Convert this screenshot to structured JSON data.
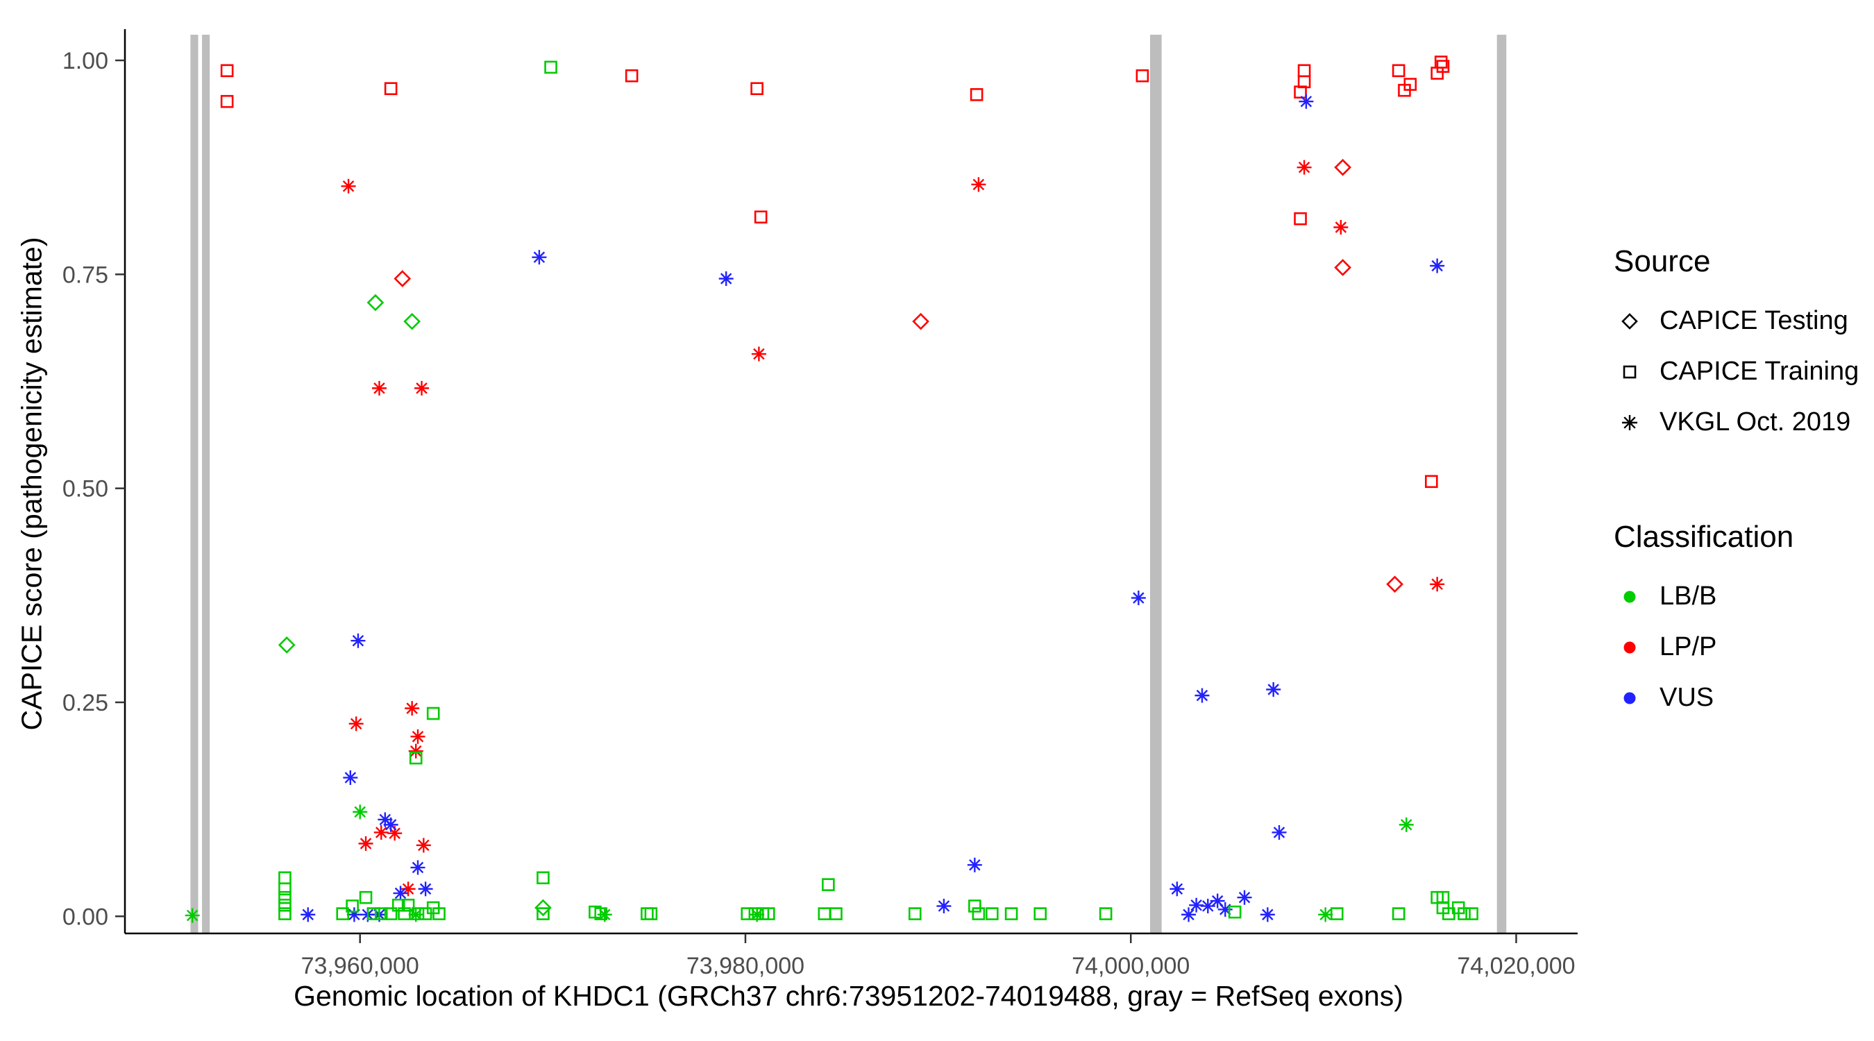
{
  "chart_data": {
    "type": "scatter",
    "title": "",
    "xlabel": "Genomic location of KHDC1 (GRCh37 chr6:73951202-74019488, gray = RefSeq exons)",
    "ylabel": "CAPICE score (pathogenicity estimate)",
    "x_range": [
      73947800,
      74022900
    ],
    "y_range": [
      -0.02,
      1.03
    ],
    "grid": false,
    "x_ticks": [
      {
        "value": 73960000,
        "label": "73,960,000"
      },
      {
        "value": 73980000,
        "label": "73,980,000"
      },
      {
        "value": 74000000,
        "label": "74,000,000"
      },
      {
        "value": 74020000,
        "label": "74,020,000"
      }
    ],
    "y_ticks": [
      {
        "value": 0.0,
        "label": "0.00"
      },
      {
        "value": 0.25,
        "label": "0.25"
      },
      {
        "value": 0.5,
        "label": "0.50"
      },
      {
        "value": 0.75,
        "label": "0.75"
      },
      {
        "value": 1.0,
        "label": "1.00"
      }
    ],
    "exon_color": "#BDBDBD",
    "exons": [
      [
        73951200,
        73951600
      ],
      [
        73951800,
        73952200
      ],
      [
        74001000,
        74001600
      ],
      [
        74019000,
        74019488
      ]
    ],
    "marker_source_map": {
      "d": "CAPICE Testing",
      "s": "CAPICE Training",
      "a": "VKGL Oct. 2019"
    },
    "classification_colors": {
      "LB/B": "#00CC00",
      "LP/P": "#FF0000",
      "VUS": "#2222FF"
    },
    "legend": {
      "source": {
        "title": "Source",
        "items": [
          {
            "label": "CAPICE Testing",
            "shape": "diamond"
          },
          {
            "label": "CAPICE Training",
            "shape": "square"
          },
          {
            "label": "VKGL Oct. 2019",
            "shape": "asterisk"
          }
        ]
      },
      "classification": {
        "title": "Classification",
        "items": [
          {
            "label": "LB/B",
            "color": "#00CC00"
          },
          {
            "label": "LP/P",
            "color": "#FF0000"
          },
          {
            "label": "VUS",
            "color": "#2222FF"
          }
        ]
      }
    },
    "points": [
      [
        73953100,
        0.988,
        "s",
        "LP/P"
      ],
      [
        73953100,
        0.952,
        "s",
        "LP/P"
      ],
      [
        73961600,
        0.967,
        "s",
        "LP/P"
      ],
      [
        73974100,
        0.982,
        "s",
        "LP/P"
      ],
      [
        73980600,
        0.967,
        "s",
        "LP/P"
      ],
      [
        73980800,
        0.817,
        "s",
        "LP/P"
      ],
      [
        73992000,
        0.96,
        "s",
        "LP/P"
      ],
      [
        74000600,
        0.982,
        "s",
        "LP/P"
      ],
      [
        74008800,
        0.963,
        "s",
        "LP/P"
      ],
      [
        74009000,
        0.975,
        "s",
        "LP/P"
      ],
      [
        74009000,
        0.988,
        "s",
        "LP/P"
      ],
      [
        74008800,
        0.815,
        "s",
        "LP/P"
      ],
      [
        74013900,
        0.988,
        "s",
        "LP/P"
      ],
      [
        74014200,
        0.965,
        "s",
        "LP/P"
      ],
      [
        74014500,
        0.972,
        "s",
        "LP/P"
      ],
      [
        74016100,
        0.998,
        "s",
        "LP/P"
      ],
      [
        74016200,
        0.993,
        "s",
        "LP/P"
      ],
      [
        74015900,
        0.985,
        "s",
        "LP/P"
      ],
      [
        74015600,
        0.508,
        "s",
        "LP/P"
      ],
      [
        73962200,
        0.745,
        "d",
        "LP/P"
      ],
      [
        73989100,
        0.695,
        "d",
        "LP/P"
      ],
      [
        74011000,
        0.875,
        "d",
        "LP/P"
      ],
      [
        74011000,
        0.758,
        "d",
        "LP/P"
      ],
      [
        74013700,
        0.388,
        "d",
        "LP/P"
      ],
      [
        73959400,
        0.853,
        "a",
        "LP/P"
      ],
      [
        73961000,
        0.617,
        "a",
        "LP/P"
      ],
      [
        73963200,
        0.617,
        "a",
        "LP/P"
      ],
      [
        73980700,
        0.657,
        "a",
        "LP/P"
      ],
      [
        73992100,
        0.855,
        "a",
        "LP/P"
      ],
      [
        74009000,
        0.875,
        "a",
        "LP/P"
      ],
      [
        74010900,
        0.805,
        "a",
        "LP/P"
      ],
      [
        74015900,
        0.388,
        "a",
        "LP/P"
      ],
      [
        73959800,
        0.225,
        "a",
        "LP/P"
      ],
      [
        73962700,
        0.243,
        "a",
        "LP/P"
      ],
      [
        73963000,
        0.21,
        "a",
        "LP/P"
      ],
      [
        73962900,
        0.193,
        "a",
        "LP/P"
      ],
      [
        73961100,
        0.098,
        "a",
        "LP/P"
      ],
      [
        73961800,
        0.097,
        "a",
        "LP/P"
      ],
      [
        73963300,
        0.083,
        "a",
        "LP/P"
      ],
      [
        73960300,
        0.085,
        "a",
        "LP/P"
      ],
      [
        73962500,
        0.032,
        "a",
        "LP/P"
      ],
      [
        73969300,
        0.77,
        "a",
        "VUS"
      ],
      [
        73979000,
        0.745,
        "a",
        "VUS"
      ],
      [
        74009100,
        0.952,
        "a",
        "VUS"
      ],
      [
        74015900,
        0.76,
        "a",
        "VUS"
      ],
      [
        74000400,
        0.372,
        "a",
        "VUS"
      ],
      [
        73959900,
        0.322,
        "a",
        "VUS"
      ],
      [
        74003700,
        0.258,
        "a",
        "VUS"
      ],
      [
        74007400,
        0.265,
        "a",
        "VUS"
      ],
      [
        74007700,
        0.098,
        "a",
        "VUS"
      ],
      [
        73959500,
        0.162,
        "a",
        "VUS"
      ],
      [
        73961300,
        0.113,
        "a",
        "VUS"
      ],
      [
        73961600,
        0.107,
        "a",
        "VUS"
      ],
      [
        73963000,
        0.057,
        "a",
        "VUS"
      ],
      [
        73963400,
        0.032,
        "a",
        "VUS"
      ],
      [
        73991900,
        0.06,
        "a",
        "VUS"
      ],
      [
        73990300,
        0.012,
        "a",
        "VUS"
      ],
      [
        73957300,
        0.002,
        "a",
        "VUS"
      ],
      [
        73959700,
        0.002,
        "a",
        "VUS"
      ],
      [
        73960400,
        0.002,
        "a",
        "VUS"
      ],
      [
        73961000,
        0.002,
        "a",
        "VUS"
      ],
      [
        73962100,
        0.027,
        "a",
        "VUS"
      ],
      [
        74002400,
        0.032,
        "a",
        "VUS"
      ],
      [
        74003000,
        0.002,
        "a",
        "VUS"
      ],
      [
        74003400,
        0.013,
        "a",
        "VUS"
      ],
      [
        74004000,
        0.012,
        "a",
        "VUS"
      ],
      [
        74004500,
        0.018,
        "a",
        "VUS"
      ],
      [
        74004900,
        0.008,
        "a",
        "VUS"
      ],
      [
        74005900,
        0.022,
        "a",
        "VUS"
      ],
      [
        74007100,
        0.002,
        "a",
        "VUS"
      ],
      [
        73960800,
        0.717,
        "d",
        "LB/B"
      ],
      [
        73962700,
        0.695,
        "d",
        "LB/B"
      ],
      [
        73956200,
        0.317,
        "d",
        "LB/B"
      ],
      [
        73969500,
        0.01,
        "d",
        "LB/B"
      ],
      [
        73969900,
        0.992,
        "s",
        "LB/B"
      ],
      [
        73963800,
        0.237,
        "s",
        "LB/B"
      ],
      [
        73962900,
        0.185,
        "s",
        "LB/B"
      ],
      [
        73956100,
        0.045,
        "s",
        "LB/B"
      ],
      [
        73956100,
        0.032,
        "s",
        "LB/B"
      ],
      [
        73956100,
        0.022,
        "s",
        "LB/B"
      ],
      [
        73956100,
        0.013,
        "s",
        "LB/B"
      ],
      [
        73956100,
        0.003,
        "s",
        "LB/B"
      ],
      [
        73959100,
        0.003,
        "s",
        "LB/B"
      ],
      [
        73959600,
        0.012,
        "s",
        "LB/B"
      ],
      [
        73960300,
        0.022,
        "s",
        "LB/B"
      ],
      [
        73960700,
        0.003,
        "s",
        "LB/B"
      ],
      [
        73961100,
        0.003,
        "s",
        "LB/B"
      ],
      [
        73961600,
        0.003,
        "s",
        "LB/B"
      ],
      [
        73962000,
        0.013,
        "s",
        "LB/B"
      ],
      [
        73962300,
        0.003,
        "s",
        "LB/B"
      ],
      [
        73962500,
        0.013,
        "s",
        "LB/B"
      ],
      [
        73963000,
        0.003,
        "s",
        "LB/B"
      ],
      [
        73963400,
        0.003,
        "s",
        "LB/B"
      ],
      [
        73963800,
        0.01,
        "s",
        "LB/B"
      ],
      [
        73964100,
        0.003,
        "s",
        "LB/B"
      ],
      [
        73969500,
        0.045,
        "s",
        "LB/B"
      ],
      [
        73969500,
        0.003,
        "s",
        "LB/B"
      ],
      [
        73972200,
        0.005,
        "s",
        "LB/B"
      ],
      [
        73972500,
        0.003,
        "s",
        "LB/B"
      ],
      [
        73974900,
        0.003,
        "s",
        "LB/B"
      ],
      [
        73975100,
        0.003,
        "s",
        "LB/B"
      ],
      [
        73980100,
        0.003,
        "s",
        "LB/B"
      ],
      [
        73980500,
        0.003,
        "s",
        "LB/B"
      ],
      [
        73980900,
        0.003,
        "s",
        "LB/B"
      ],
      [
        73981200,
        0.003,
        "s",
        "LB/B"
      ],
      [
        73984300,
        0.037,
        "s",
        "LB/B"
      ],
      [
        73984100,
        0.003,
        "s",
        "LB/B"
      ],
      [
        73984700,
        0.003,
        "s",
        "LB/B"
      ],
      [
        73988800,
        0.003,
        "s",
        "LB/B"
      ],
      [
        73991900,
        0.012,
        "s",
        "LB/B"
      ],
      [
        73992100,
        0.003,
        "s",
        "LB/B"
      ],
      [
        73992800,
        0.003,
        "s",
        "LB/B"
      ],
      [
        73993800,
        0.003,
        "s",
        "LB/B"
      ],
      [
        73995300,
        0.003,
        "s",
        "LB/B"
      ],
      [
        73998700,
        0.003,
        "s",
        "LB/B"
      ],
      [
        74005400,
        0.005,
        "s",
        "LB/B"
      ],
      [
        74010700,
        0.003,
        "s",
        "LB/B"
      ],
      [
        74013900,
        0.003,
        "s",
        "LB/B"
      ],
      [
        74015900,
        0.022,
        "s",
        "LB/B"
      ],
      [
        74016200,
        0.022,
        "s",
        "LB/B"
      ],
      [
        74016200,
        0.01,
        "s",
        "LB/B"
      ],
      [
        74016500,
        0.003,
        "s",
        "LB/B"
      ],
      [
        74017000,
        0.01,
        "s",
        "LB/B"
      ],
      [
        74017300,
        0.003,
        "s",
        "LB/B"
      ],
      [
        74017700,
        0.003,
        "s",
        "LB/B"
      ],
      [
        73951300,
        0.001,
        "a",
        "LB/B"
      ],
      [
        73960000,
        0.122,
        "a",
        "LB/B"
      ],
      [
        73972700,
        0.002,
        "a",
        "LB/B"
      ],
      [
        73980600,
        0.002,
        "a",
        "LB/B"
      ],
      [
        74010100,
        0.002,
        "a",
        "LB/B"
      ],
      [
        74014300,
        0.107,
        "a",
        "LB/B"
      ],
      [
        73962900,
        0.002,
        "a",
        "LB/B"
      ]
    ]
  }
}
